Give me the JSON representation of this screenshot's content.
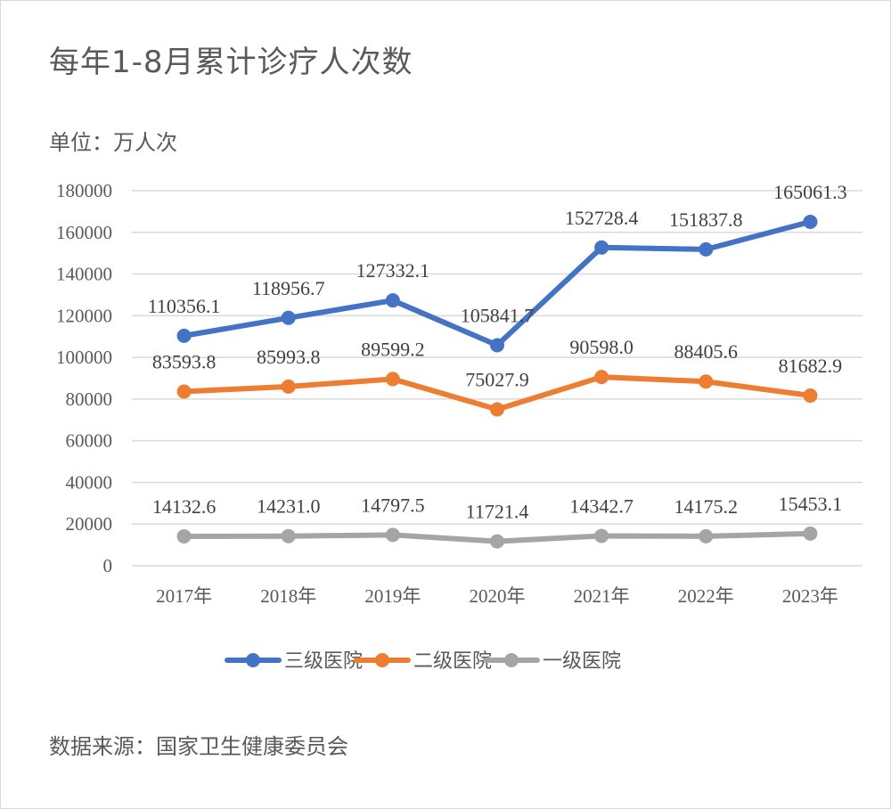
{
  "title": "每年1-8月累计诊疗人次数",
  "unit": "单位：万人次",
  "source": "数据来源：国家卫生健康委员会",
  "chart_data": {
    "type": "line",
    "title": "每年1-8月累计诊疗人次数",
    "ylabel": "单位：万人次",
    "categories": [
      "2017年",
      "2018年",
      "2019年",
      "2020年",
      "2021年",
      "2022年",
      "2023年"
    ],
    "ylim": [
      0,
      180000
    ],
    "yticks": [
      0,
      20000,
      40000,
      60000,
      80000,
      100000,
      120000,
      140000,
      160000,
      180000
    ],
    "grid": true,
    "legend": "bottom",
    "series": [
      {
        "name": "三级医院",
        "color": "#4472C4",
        "values": [
          110356.1,
          118956.7,
          127332.1,
          105841.7,
          152728.4,
          151837.8,
          165061.3
        ],
        "labels": [
          "110356.1",
          "118956.7",
          "127332.1",
          "105841.7",
          "152728.4",
          "151837.8",
          "165061.3"
        ]
      },
      {
        "name": "二级医院",
        "color": "#ED7D31",
        "values": [
          83593.8,
          85993.8,
          89599.2,
          75027.9,
          90598.0,
          88405.6,
          81682.9
        ],
        "labels": [
          "83593.8",
          "85993.8",
          "89599.2",
          "75027.9",
          "90598.0",
          "88405.6",
          "81682.9"
        ]
      },
      {
        "name": "一级医院",
        "color": "#A5A5A5",
        "values": [
          14132.6,
          14231.0,
          14797.5,
          11721.4,
          14342.7,
          14175.2,
          15453.1
        ],
        "labels": [
          "14132.6",
          "14231.0",
          "14797.5",
          "11721.4",
          "14342.7",
          "14175.2",
          "15453.1"
        ]
      }
    ]
  }
}
